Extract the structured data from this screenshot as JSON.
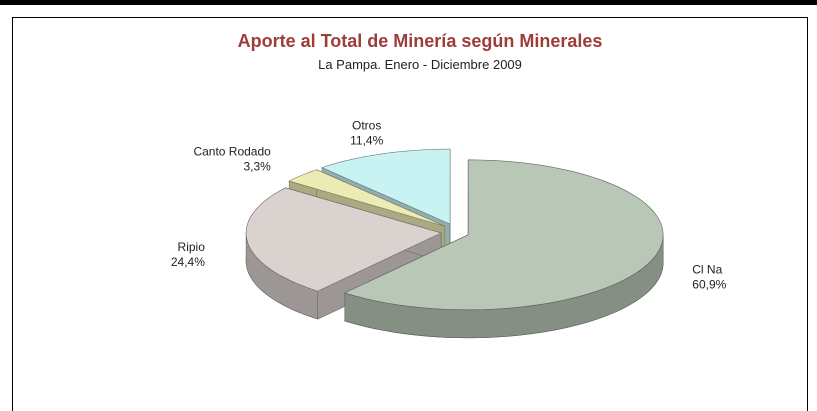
{
  "chart_data": {
    "type": "pie3d",
    "title": "Aporte al Total de Minería  según Minerales",
    "subtitle": "La Pampa. Enero - Diciembre 2009",
    "categories": [
      "Cl Na",
      "Ripio",
      "Canto Rodado",
      "Otros"
    ],
    "values": [
      60.9,
      24.4,
      3.3,
      11.4
    ],
    "value_labels": [
      "60,9%",
      "24,4%",
      "3,3%",
      "11,4%"
    ],
    "colors": [
      "#b9c7b7",
      "#d9d2cf",
      "#ecebb4",
      "#c9f2f2"
    ]
  }
}
